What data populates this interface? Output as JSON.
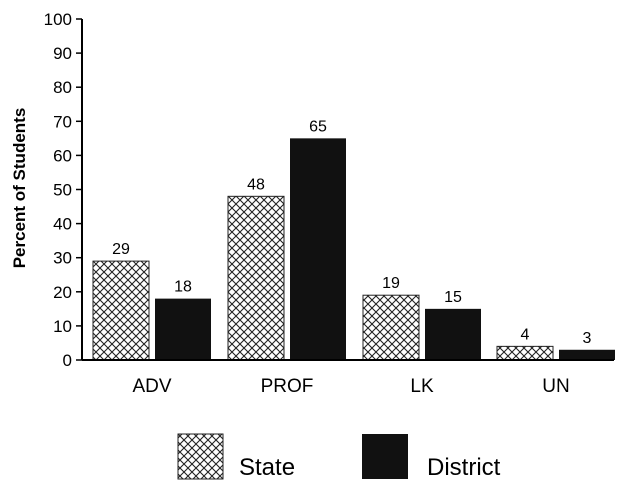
{
  "chart_data": {
    "type": "bar",
    "categories": [
      "ADV",
      "PROF",
      "LK",
      "UN"
    ],
    "series": [
      {
        "name": "State",
        "values": [
          29,
          48,
          19,
          4
        ],
        "pattern": "crosshatch",
        "color": "#ffffff"
      },
      {
        "name": "District",
        "values": [
          18,
          65,
          15,
          3
        ],
        "pattern": "solid",
        "color": "#111111"
      }
    ],
    "title": "",
    "xlabel": "",
    "ylabel": "Percent of Students",
    "ylim": [
      0,
      100
    ],
    "yticks": [
      "0",
      "10",
      "20",
      "30",
      "40",
      "50",
      "60",
      "70",
      "80",
      "90",
      "100"
    ],
    "grid": false,
    "legend_position": "bottom-center"
  }
}
